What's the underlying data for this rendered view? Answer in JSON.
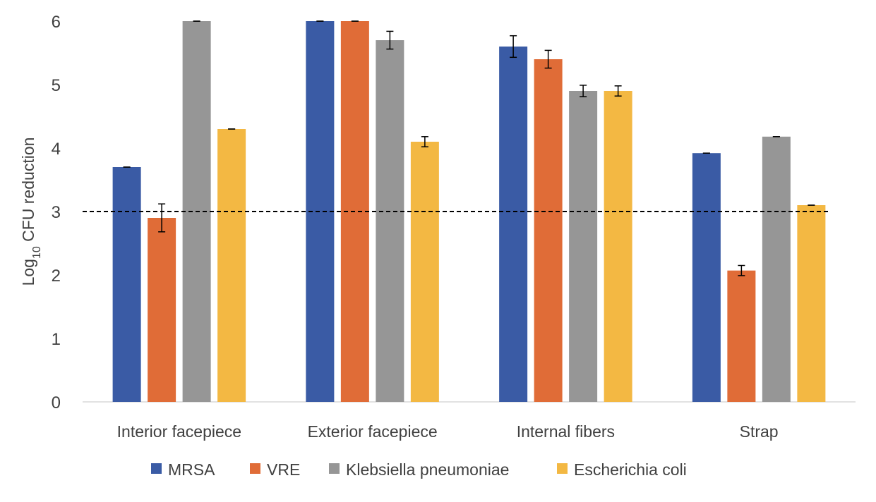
{
  "chart_data": {
    "type": "bar",
    "title": "",
    "xlabel": "",
    "ylabel": {
      "base": "Log",
      "sub": "10",
      "rest": " CFU reduction"
    },
    "ylim": [
      0,
      6
    ],
    "yticks": [
      0,
      1,
      2,
      3,
      4,
      5,
      6
    ],
    "categories": [
      "Interior facepiece",
      "Exterior facepiece",
      "Internal fibers",
      "Strap"
    ],
    "reference_line": 3,
    "series": [
      {
        "name": "MRSA",
        "color": "#3a5ba5",
        "values": [
          3.7,
          6.0,
          5.6,
          3.92
        ],
        "errors": [
          0.0,
          0.0,
          0.17,
          0.0
        ]
      },
      {
        "name": "VRE",
        "color": "#e06c37",
        "values": [
          2.9,
          6.0,
          5.4,
          2.07
        ],
        "errors": [
          0.22,
          0.0,
          0.14,
          0.08
        ]
      },
      {
        "name": "Klebsiella pneumoniae",
        "color": "#969696",
        "values": [
          6.0,
          5.7,
          4.9,
          4.18
        ],
        "errors": [
          0.0,
          0.14,
          0.09,
          0.0
        ]
      },
      {
        "name": "Escherichia coli",
        "color": "#f3b843",
        "values": [
          4.3,
          4.1,
          4.9,
          3.1
        ],
        "errors": [
          0.0,
          0.08,
          0.08,
          0.0
        ]
      }
    ],
    "legend": "bottom"
  }
}
